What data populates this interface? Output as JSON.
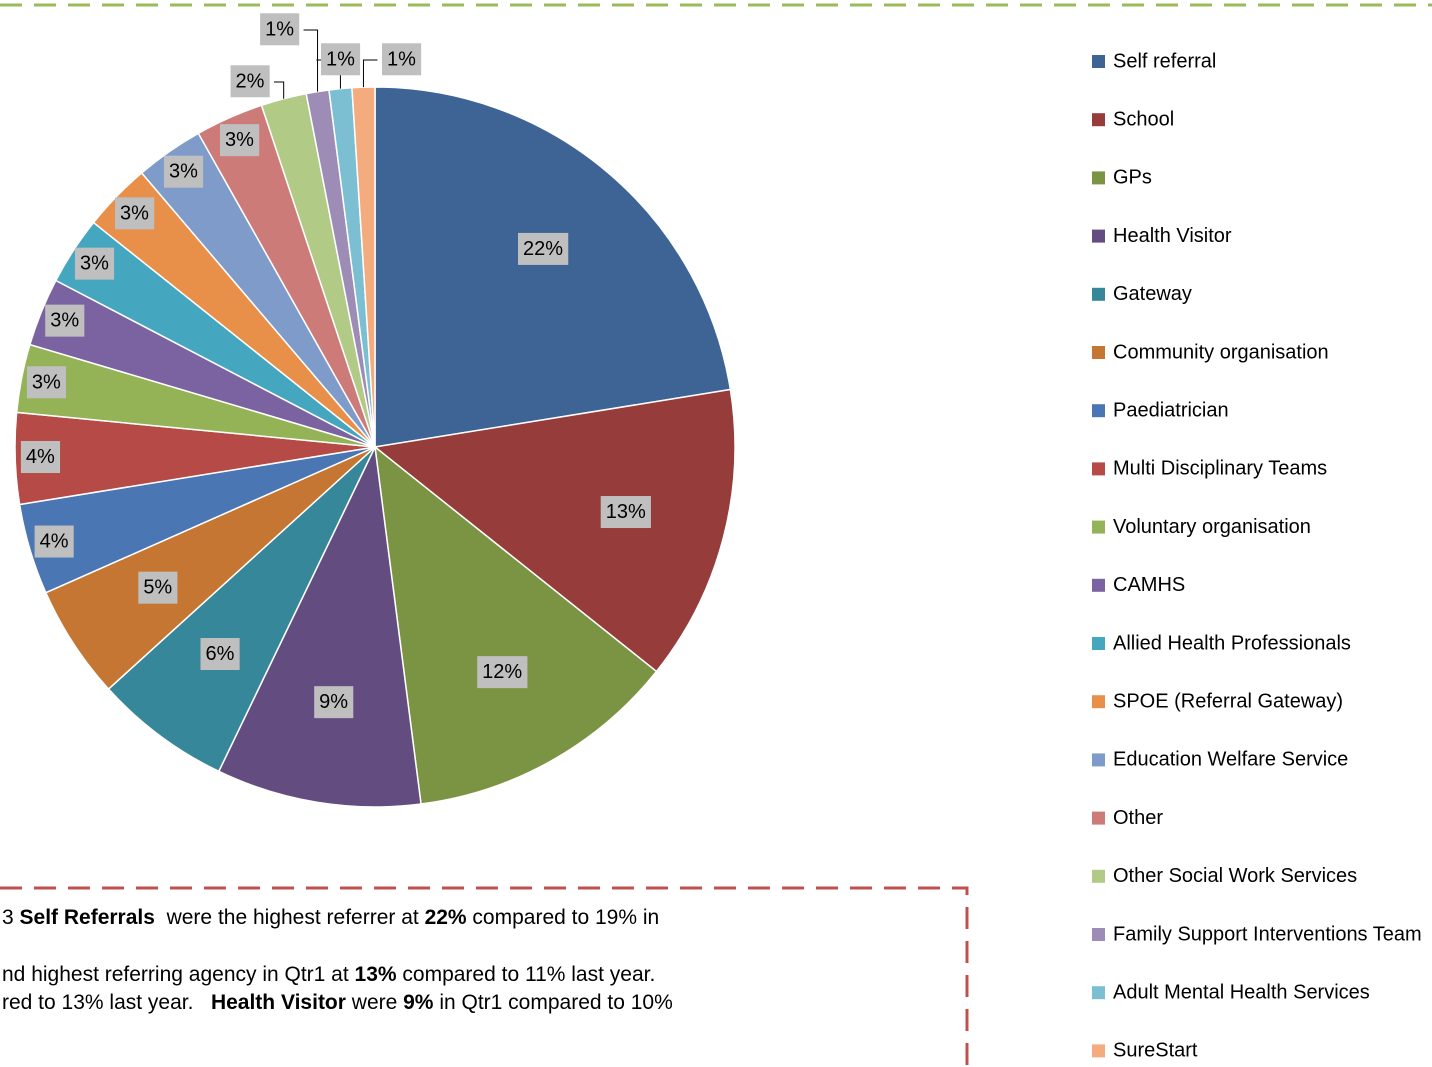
{
  "chart_data": {
    "type": "pie",
    "categories": [
      "Self referral",
      "School",
      "GPs",
      "Health Visitor",
      "Gateway",
      "Community organisation",
      "Paediatrician",
      "Multi Disciplinary Teams",
      "Voluntary organisation",
      "CAMHS",
      "Allied Health Professionals",
      "SPOE (Referral Gateway)",
      "Education Welfare Service",
      "Other",
      "Other Social Work Services",
      "Family Support Interventions Team",
      "Adult Mental Health Services",
      "SureStart"
    ],
    "values": [
      22,
      13,
      12,
      9,
      6,
      5,
      4,
      4,
      3,
      3,
      3,
      3,
      3,
      3,
      2,
      1,
      1,
      1
    ],
    "colors": [
      "#3e6496",
      "#963c3a",
      "#7a9443",
      "#634c7f",
      "#368799",
      "#c57632",
      "#4a77b3",
      "#b54a46",
      "#93b356",
      "#7b62a0",
      "#45a6c0",
      "#e8904a",
      "#7e9bc9",
      "#cc7b79",
      "#b1ca86",
      "#9d8cb6",
      "#7dbfd2",
      "#f4ab7e"
    ],
    "value_labels": [
      "22%",
      "13%",
      "12%",
      "9%",
      "6%",
      "5%",
      "4%",
      "4%",
      "3%",
      "3%",
      "3%",
      "3%",
      "3%",
      "3%",
      "2%",
      "1%",
      "1%",
      "1%"
    ],
    "legend": "right"
  },
  "note": {
    "lines": [
      [
        {
          "text": "3 ",
          "bold": false
        },
        {
          "text": "Self Referrals",
          "bold": true
        },
        {
          "text": "  were the highest referrer at ",
          "bold": false
        },
        {
          "text": "22%",
          "bold": true
        },
        {
          "text": " compared to 19% in",
          "bold": false
        }
      ],
      [
        {
          "text": "nd highest referring agency in Qtr1 at ",
          "bold": false
        },
        {
          "text": "13%",
          "bold": true
        },
        {
          "text": " compared to 11% last year.",
          "bold": false
        }
      ],
      [
        {
          "text": "red to 13% last year.   ",
          "bold": false
        },
        {
          "text": "Health Visitor",
          "bold": true
        },
        {
          "text": " were ",
          "bold": false
        },
        {
          "text": "9%",
          "bold": true
        },
        {
          "text": " in Qtr1 compared to 10%",
          "bold": false
        }
      ]
    ]
  }
}
